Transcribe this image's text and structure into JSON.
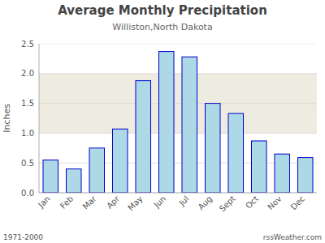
{
  "chart_data": {
    "type": "bar",
    "title": "Average Monthly Precipitation",
    "subtitle": "Williston,North Dakota",
    "ylabel": "Inches",
    "annotations": [
      "1971-2000",
      "rssWeather.com"
    ],
    "categories": [
      "Jan",
      "Feb",
      "Mar",
      "Apr",
      "May",
      "Jun",
      "Jul",
      "Aug",
      "Sept",
      "Oct",
      "Nov",
      "Dec"
    ],
    "values": [
      0.55,
      0.4,
      0.75,
      1.07,
      1.88,
      2.37,
      2.28,
      1.5,
      1.33,
      0.87,
      0.65,
      0.59
    ],
    "color": "#add8e6",
    "band": {
      "from": 1.0,
      "to": 2.0,
      "color": "#eeebe0"
    },
    "ylim": [
      0,
      2.5
    ],
    "yticks": [
      {
        "value": 0,
        "label": "0.0"
      },
      0.5,
      {
        "value": 1,
        "label": "1.0"
      },
      1.5,
      {
        "value": 2,
        "label": "2.0"
      },
      2.5
    ],
    "grid": true
  }
}
